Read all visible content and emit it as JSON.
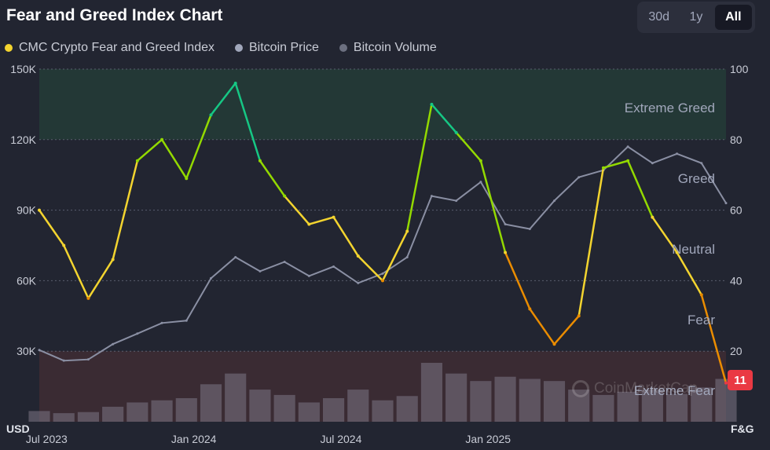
{
  "header": {
    "title": "Fear and Greed Index Chart",
    "ranges": [
      "30d",
      "1y",
      "All"
    ],
    "active_range": "All"
  },
  "legend": {
    "fg": "CMC Crypto Fear and Greed Index",
    "price": "Bitcoin Price",
    "volume": "Bitcoin Volume"
  },
  "colors": {
    "background": "#222531",
    "extreme_greed_zone": "#233836",
    "extreme_fear_zone": "#3a2b33",
    "price_line": "#8a8fa3",
    "volume_bars": "#77707e",
    "extreme_fear": "#ea3943",
    "fear": "#ea8c00",
    "neutral": "#f3d42f",
    "greed": "#93d900",
    "extreme_greed": "#16c784"
  },
  "axis_units": {
    "left": "USD",
    "right": "F&G"
  },
  "current_value": "11",
  "watermark": "CoinMarketCap",
  "chart_data": {
    "type": "line",
    "title": "Fear and Greed Index Chart",
    "x_labels": [
      "Jul 2023",
      "Jan 2024",
      "Jul 2024",
      "Jan 2025"
    ],
    "x": [
      "2023-07",
      "2023-08",
      "2023-09",
      "2023-10",
      "2023-11",
      "2023-12",
      "2024-01",
      "2024-02",
      "2024-03",
      "2024-04",
      "2024-05",
      "2024-06",
      "2024-07",
      "2024-08",
      "2024-09",
      "2024-10",
      "2024-11",
      "2024-12",
      "2025-01",
      "2025-02",
      "2025-03",
      "2025-04",
      "2025-05",
      "2025-06",
      "2025-07",
      "2025-08",
      "2025-09",
      "2025-10",
      "2025-11"
    ],
    "left_axis": {
      "label": "USD",
      "ticks": [
        "30K",
        "60K",
        "90K",
        "120K",
        "150K"
      ],
      "tick_values": [
        30000,
        60000,
        90000,
        120000,
        150000
      ],
      "ylim": [
        0,
        150000
      ]
    },
    "right_axis": {
      "label": "F&G",
      "ticks": [
        "20",
        "40",
        "60",
        "80",
        "100"
      ],
      "tick_values": [
        20,
        40,
        60,
        80,
        100
      ],
      "ylim": [
        0,
        100
      ]
    },
    "zones": [
      {
        "label": "Extreme Greed",
        "range": [
          80,
          100
        ]
      },
      {
        "label": "Greed",
        "range": [
          60,
          80
        ]
      },
      {
        "label": "Neutral",
        "range": [
          40,
          60
        ]
      },
      {
        "label": "Fear",
        "range": [
          20,
          40
        ]
      },
      {
        "label": "Extreme Fear",
        "range": [
          0,
          20
        ]
      }
    ],
    "series": [
      {
        "name": "CMC Crypto Fear and Greed Index",
        "axis": "right",
        "values": [
          60,
          50,
          35,
          46,
          74,
          80,
          69,
          87,
          96,
          74,
          64,
          56,
          58,
          47,
          40,
          54,
          90,
          82,
          74,
          48,
          32,
          22,
          30,
          72,
          74,
          58,
          48,
          36,
          11
        ]
      },
      {
        "name": "Bitcoin Price",
        "axis": "left",
        "values": [
          30500,
          26000,
          26500,
          33000,
          37500,
          42000,
          43000,
          61000,
          70000,
          64000,
          68000,
          62000,
          66000,
          59000,
          63000,
          70000,
          96000,
          94000,
          102000,
          84000,
          82000,
          94000,
          104000,
          107000,
          117000,
          110000,
          114000,
          110000,
          93000
        ]
      },
      {
        "name": "Bitcoin Volume",
        "axis": "none",
        "values": [
          10,
          8,
          9,
          14,
          18,
          20,
          22,
          35,
          45,
          30,
          25,
          18,
          22,
          30,
          20,
          24,
          55,
          45,
          38,
          42,
          40,
          38,
          30,
          25,
          28,
          30,
          26,
          32,
          40
        ]
      }
    ]
  }
}
